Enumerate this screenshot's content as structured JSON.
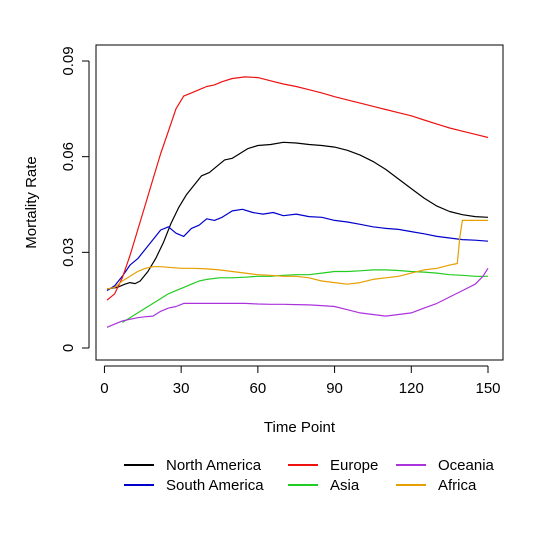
{
  "chart_data": {
    "type": "line",
    "xlabel": "Time Point",
    "ylabel": "Mortality Rate",
    "xlim": [
      1,
      150
    ],
    "ylim": [
      0,
      0.09
    ],
    "x_ticks": [
      0,
      30,
      60,
      90,
      120,
      150
    ],
    "x_tick_labels": [
      "0",
      "30",
      "60",
      "90",
      "120",
      "150"
    ],
    "y_ticks": [
      0,
      0.03,
      0.06,
      0.09
    ],
    "y_tick_labels": [
      "0",
      "0.03",
      "0.06",
      "0.09"
    ],
    "grid": false,
    "legend": {
      "placement": "bottom",
      "columns": 3
    },
    "series": [
      {
        "name": "North America",
        "color": "#000000",
        "points": [
          [
            1,
            0.0185
          ],
          [
            5,
            0.019
          ],
          [
            8,
            0.02
          ],
          [
            10,
            0.0205
          ],
          [
            12,
            0.0202
          ],
          [
            14,
            0.021
          ],
          [
            17,
            0.024
          ],
          [
            20,
            0.028
          ],
          [
            23,
            0.033
          ],
          [
            26,
            0.039
          ],
          [
            29,
            0.044
          ],
          [
            32,
            0.048
          ],
          [
            35,
            0.051
          ],
          [
            38,
            0.054
          ],
          [
            41,
            0.055
          ],
          [
            44,
            0.057
          ],
          [
            47,
            0.059
          ],
          [
            50,
            0.0595
          ],
          [
            53,
            0.061
          ],
          [
            56,
            0.0625
          ],
          [
            60,
            0.0635
          ],
          [
            65,
            0.0638
          ],
          [
            70,
            0.0645
          ],
          [
            75,
            0.0643
          ],
          [
            80,
            0.0638
          ],
          [
            85,
            0.0635
          ],
          [
            90,
            0.063
          ],
          [
            95,
            0.062
          ],
          [
            100,
            0.0605
          ],
          [
            105,
            0.0585
          ],
          [
            110,
            0.056
          ],
          [
            115,
            0.053
          ],
          [
            120,
            0.05
          ],
          [
            125,
            0.047
          ],
          [
            130,
            0.0445
          ],
          [
            135,
            0.0428
          ],
          [
            140,
            0.0418
          ],
          [
            145,
            0.0412
          ],
          [
            150,
            0.041
          ]
        ]
      },
      {
        "name": "South America",
        "color": "#0000cc",
        "points": [
          [
            1,
            0.018
          ],
          [
            4,
            0.0195
          ],
          [
            7,
            0.0225
          ],
          [
            10,
            0.026
          ],
          [
            13,
            0.028
          ],
          [
            16,
            0.031
          ],
          [
            19,
            0.034
          ],
          [
            22,
            0.037
          ],
          [
            25,
            0.038
          ],
          [
            28,
            0.036
          ],
          [
            31,
            0.035
          ],
          [
            34,
            0.0375
          ],
          [
            37,
            0.0385
          ],
          [
            40,
            0.0405
          ],
          [
            43,
            0.04
          ],
          [
            46,
            0.041
          ],
          [
            50,
            0.043
          ],
          [
            54,
            0.0435
          ],
          [
            58,
            0.0425
          ],
          [
            62,
            0.042
          ],
          [
            66,
            0.0425
          ],
          [
            70,
            0.0415
          ],
          [
            75,
            0.042
          ],
          [
            80,
            0.0412
          ],
          [
            85,
            0.041
          ],
          [
            90,
            0.04
          ],
          [
            95,
            0.0395
          ],
          [
            100,
            0.0388
          ],
          [
            105,
            0.038
          ],
          [
            110,
            0.0375
          ],
          [
            115,
            0.0372
          ],
          [
            120,
            0.0365
          ],
          [
            125,
            0.0358
          ],
          [
            130,
            0.035
          ],
          [
            135,
            0.0345
          ],
          [
            140,
            0.034
          ],
          [
            145,
            0.0338
          ],
          [
            150,
            0.0335
          ]
        ]
      },
      {
        "name": "Europe",
        "color": "#ee1111",
        "points": [
          [
            1,
            0.015
          ],
          [
            4,
            0.017
          ],
          [
            7,
            0.022
          ],
          [
            10,
            0.029
          ],
          [
            13,
            0.037
          ],
          [
            16,
            0.045
          ],
          [
            19,
            0.053
          ],
          [
            22,
            0.061
          ],
          [
            25,
            0.068
          ],
          [
            28,
            0.075
          ],
          [
            31,
            0.079
          ],
          [
            34,
            0.08
          ],
          [
            37,
            0.081
          ],
          [
            40,
            0.082
          ],
          [
            43,
            0.0825
          ],
          [
            46,
            0.0835
          ],
          [
            50,
            0.0845
          ],
          [
            55,
            0.085
          ],
          [
            60,
            0.0848
          ],
          [
            65,
            0.0838
          ],
          [
            70,
            0.0828
          ],
          [
            75,
            0.082
          ],
          [
            80,
            0.081
          ],
          [
            85,
            0.08
          ],
          [
            90,
            0.0788
          ],
          [
            95,
            0.0778
          ],
          [
            100,
            0.0768
          ],
          [
            105,
            0.0758
          ],
          [
            110,
            0.0748
          ],
          [
            115,
            0.0738
          ],
          [
            120,
            0.0728
          ],
          [
            125,
            0.0715
          ],
          [
            130,
            0.0702
          ],
          [
            135,
            0.069
          ],
          [
            140,
            0.068
          ],
          [
            145,
            0.067
          ],
          [
            150,
            0.066
          ]
        ]
      },
      {
        "name": "Asia",
        "color": "#22cc22",
        "points": [
          [
            7,
            0.008
          ],
          [
            10,
            0.0095
          ],
          [
            13,
            0.011
          ],
          [
            16,
            0.0125
          ],
          [
            19,
            0.014
          ],
          [
            22,
            0.0155
          ],
          [
            25,
            0.017
          ],
          [
            28,
            0.018
          ],
          [
            31,
            0.019
          ],
          [
            34,
            0.02
          ],
          [
            37,
            0.021
          ],
          [
            40,
            0.0215
          ],
          [
            45,
            0.022
          ],
          [
            50,
            0.022
          ],
          [
            55,
            0.0222
          ],
          [
            60,
            0.0225
          ],
          [
            65,
            0.0225
          ],
          [
            70,
            0.0228
          ],
          [
            75,
            0.023
          ],
          [
            80,
            0.023
          ],
          [
            85,
            0.0235
          ],
          [
            90,
            0.024
          ],
          [
            95,
            0.024
          ],
          [
            100,
            0.0242
          ],
          [
            105,
            0.0245
          ],
          [
            110,
            0.0245
          ],
          [
            115,
            0.0243
          ],
          [
            120,
            0.024
          ],
          [
            125,
            0.0238
          ],
          [
            130,
            0.0235
          ],
          [
            135,
            0.023
          ],
          [
            140,
            0.0228
          ],
          [
            145,
            0.0225
          ],
          [
            150,
            0.0225
          ]
        ]
      },
      {
        "name": "Oceania",
        "color": "#aa33dd",
        "points": [
          [
            1,
            0.0065
          ],
          [
            4,
            0.0075
          ],
          [
            7,
            0.0085
          ],
          [
            10,
            0.009
          ],
          [
            13,
            0.0095
          ],
          [
            16,
            0.0098
          ],
          [
            19,
            0.01
          ],
          [
            22,
            0.0115
          ],
          [
            25,
            0.0125
          ],
          [
            28,
            0.013
          ],
          [
            31,
            0.014
          ],
          [
            35,
            0.014
          ],
          [
            40,
            0.014
          ],
          [
            45,
            0.014
          ],
          [
            50,
            0.014
          ],
          [
            55,
            0.014
          ],
          [
            60,
            0.0138
          ],
          [
            65,
            0.0137
          ],
          [
            70,
            0.0137
          ],
          [
            75,
            0.0136
          ],
          [
            80,
            0.0135
          ],
          [
            85,
            0.0133
          ],
          [
            90,
            0.013
          ],
          [
            95,
            0.012
          ],
          [
            100,
            0.011
          ],
          [
            105,
            0.0105
          ],
          [
            110,
            0.01
          ],
          [
            115,
            0.0105
          ],
          [
            120,
            0.011
          ],
          [
            125,
            0.0125
          ],
          [
            130,
            0.014
          ],
          [
            135,
            0.016
          ],
          [
            140,
            0.018
          ],
          [
            145,
            0.02
          ],
          [
            148,
            0.0225
          ],
          [
            150,
            0.025
          ]
        ]
      },
      {
        "name": "Africa",
        "color": "#e69f00",
        "points": [
          [
            1,
            0.0185
          ],
          [
            4,
            0.019
          ],
          [
            7,
            0.021
          ],
          [
            10,
            0.0225
          ],
          [
            13,
            0.024
          ],
          [
            16,
            0.025
          ],
          [
            19,
            0.0255
          ],
          [
            22,
            0.0255
          ],
          [
            25,
            0.0253
          ],
          [
            30,
            0.025
          ],
          [
            35,
            0.025
          ],
          [
            40,
            0.0248
          ],
          [
            45,
            0.0245
          ],
          [
            50,
            0.024
          ],
          [
            55,
            0.0235
          ],
          [
            60,
            0.023
          ],
          [
            65,
            0.0228
          ],
          [
            70,
            0.0225
          ],
          [
            75,
            0.0225
          ],
          [
            80,
            0.022
          ],
          [
            85,
            0.021
          ],
          [
            90,
            0.0205
          ],
          [
            95,
            0.02
          ],
          [
            100,
            0.0205
          ],
          [
            105,
            0.0215
          ],
          [
            110,
            0.022
          ],
          [
            115,
            0.0225
          ],
          [
            120,
            0.0235
          ],
          [
            125,
            0.0245
          ],
          [
            130,
            0.025
          ],
          [
            135,
            0.026
          ],
          [
            138,
            0.0265
          ],
          [
            139,
            0.035
          ],
          [
            140,
            0.04
          ],
          [
            145,
            0.04
          ],
          [
            150,
            0.04
          ]
        ]
      }
    ]
  }
}
